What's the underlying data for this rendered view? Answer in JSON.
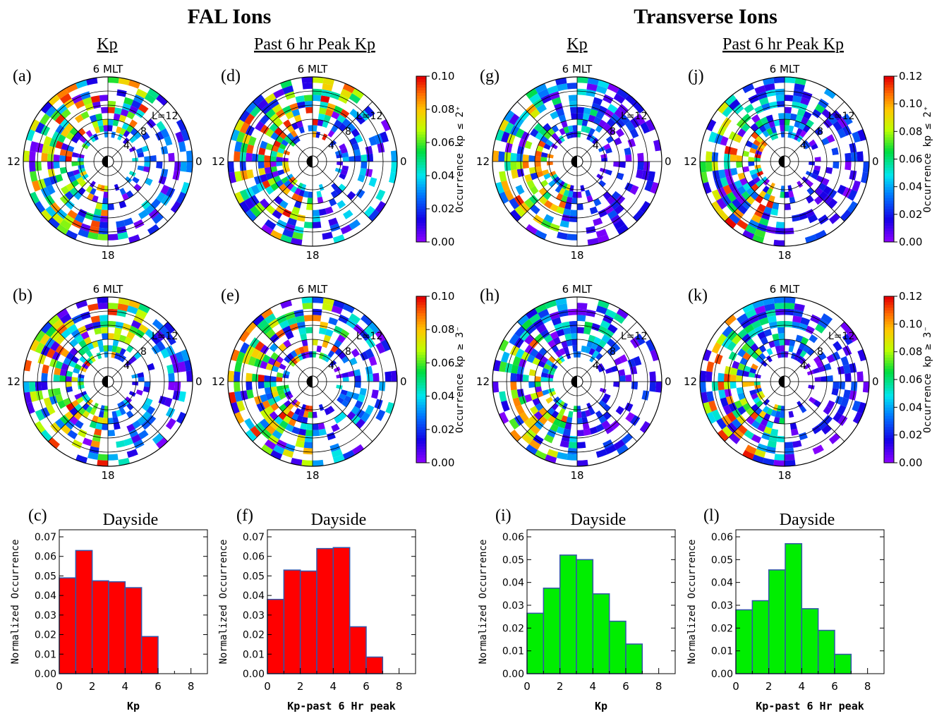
{
  "titles": {
    "fal": "FAL Ions",
    "transverse": "Transverse Ions"
  },
  "subtitles": {
    "kp": "Kp",
    "peak": "Past 6 hr Peak Kp"
  },
  "dial_labels": {
    "top": "6 MLT",
    "left": "12",
    "right": "0",
    "bottom": "18",
    "l12": "L=12",
    "l8": "8",
    "l4": "4"
  },
  "colorbars": [
    {
      "id": "fal_low",
      "label": "Occurrence kp ≤ 2⁺",
      "ticks": [
        "0.00",
        "0.02",
        "0.04",
        "0.06",
        "0.08",
        "0.10"
      ],
      "range": [
        0,
        0.1
      ]
    },
    {
      "id": "fal_high",
      "label": "Occurrence kp ≥ 3⁻",
      "ticks": [
        "0.00",
        "0.02",
        "0.04",
        "0.06",
        "0.08",
        "0.10"
      ],
      "range": [
        0,
        0.1
      ]
    },
    {
      "id": "tr_low",
      "label": "Occurrence kp ≤ 2⁺",
      "ticks": [
        "0.00",
        "0.02",
        "0.04",
        "0.06",
        "0.08",
        "0.10",
        "0.12"
      ],
      "range": [
        0,
        0.12
      ]
    },
    {
      "id": "tr_high",
      "label": "Occurrence kp ≥ 3⁻",
      "ticks": [
        "0.00",
        "0.02",
        "0.04",
        "0.06",
        "0.08",
        "0.10",
        "0.12"
      ],
      "range": [
        0,
        0.12
      ]
    }
  ],
  "chart_data": [
    {
      "type": "heatmap",
      "panel": "(a)",
      "description_key": "fal_kp_low",
      "cmap_max": 0.1
    },
    {
      "type": "heatmap",
      "panel": "(b)",
      "description_key": "fal_kp_high",
      "cmap_max": 0.1
    },
    {
      "type": "heatmap",
      "panel": "(d)",
      "description_key": "fal_peak_low",
      "cmap_max": 0.1
    },
    {
      "type": "heatmap",
      "panel": "(e)",
      "description_key": "fal_peak_high",
      "cmap_max": 0.1
    },
    {
      "type": "heatmap",
      "panel": "(g)",
      "description_key": "tr_kp_low",
      "cmap_max": 0.12
    },
    {
      "type": "heatmap",
      "panel": "(h)",
      "description_key": "tr_kp_high",
      "cmap_max": 0.12
    },
    {
      "type": "heatmap",
      "panel": "(j)",
      "description_key": "tr_peak_low",
      "cmap_max": 0.12
    },
    {
      "type": "heatmap",
      "panel": "(k)",
      "description_key": "tr_peak_high",
      "cmap_max": 0.12
    },
    {
      "type": "bar",
      "panel": "(c)",
      "title": "Dayside",
      "xlabel": "Kp",
      "ylabel": "Normalized Occurrence",
      "x": [
        0.5,
        1.5,
        2.5,
        3.5,
        4.5,
        5.5
      ],
      "values": [
        0.049,
        0.063,
        0.0475,
        0.047,
        0.044,
        0.019
      ],
      "xlim": [
        0,
        9
      ],
      "ylim": [
        0,
        0.07
      ],
      "xticks": [
        "0",
        "2",
        "4",
        "6",
        "8"
      ],
      "yticks": [
        "0.00",
        "0.01",
        "0.02",
        "0.03",
        "0.04",
        "0.05",
        "0.06",
        "0.07"
      ],
      "color": "#ff0000"
    },
    {
      "type": "bar",
      "panel": "(f)",
      "title": "Dayside",
      "xlabel": "Kp-past 6 Hr peak",
      "ylabel": "Normalized Occurrence",
      "x": [
        0.5,
        1.5,
        2.5,
        3.5,
        4.5,
        5.5,
        6.5
      ],
      "values": [
        0.038,
        0.053,
        0.0525,
        0.064,
        0.0645,
        0.024,
        0.0085
      ],
      "xlim": [
        0,
        9
      ],
      "ylim": [
        0,
        0.07
      ],
      "xticks": [
        "0",
        "2",
        "4",
        "6",
        "8"
      ],
      "yticks": [
        "0.00",
        "0.01",
        "0.02",
        "0.03",
        "0.04",
        "0.05",
        "0.06",
        "0.07"
      ],
      "color": "#ff0000"
    },
    {
      "type": "bar",
      "panel": "(i)",
      "title": "Dayside",
      "xlabel": "Kp",
      "ylabel": "Normalized Occurrence",
      "x": [
        0.5,
        1.5,
        2.5,
        3.5,
        4.5,
        5.5,
        6.5
      ],
      "values": [
        0.0265,
        0.0375,
        0.052,
        0.05,
        0.035,
        0.023,
        0.013
      ],
      "xlim": [
        0,
        9
      ],
      "ylim": [
        0,
        0.06
      ],
      "xticks": [
        "0",
        "2",
        "4",
        "6",
        "8"
      ],
      "yticks": [
        "0.00",
        "0.01",
        "0.02",
        "0.03",
        "0.04",
        "0.05",
        "0.06"
      ],
      "color": "#00ee00"
    },
    {
      "type": "bar",
      "panel": "(l)",
      "title": "Dayside",
      "xlabel": "Kp-past 6 Hr peak",
      "ylabel": "Normalized Occurrence",
      "x": [
        0.5,
        1.5,
        2.5,
        3.5,
        4.5,
        5.5,
        6.5
      ],
      "values": [
        0.028,
        0.032,
        0.0455,
        0.057,
        0.0285,
        0.019,
        0.0085
      ],
      "xlim": [
        0,
        9
      ],
      "ylim": [
        0,
        0.06
      ],
      "xticks": [
        "0",
        "2",
        "4",
        "6",
        "8"
      ],
      "yticks": [
        "0.00",
        "0.01",
        "0.02",
        "0.03",
        "0.04",
        "0.05",
        "0.06"
      ],
      "color": "#00ee00"
    }
  ],
  "dial_grid": {
    "l_max": 12,
    "l_rings": [
      2,
      4,
      6,
      8,
      10,
      12
    ],
    "mlt_sectors": 8
  }
}
